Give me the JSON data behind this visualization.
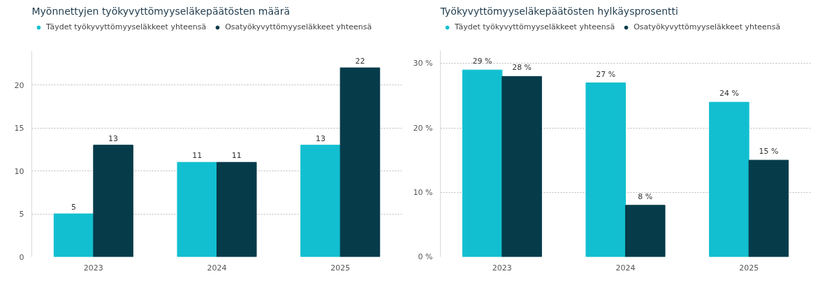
{
  "chart_data": [
    {
      "type": "bar",
      "title": "Myönnettyjen työkyvyttömyyseläkepäätösten määrä",
      "categories": [
        "2023",
        "2024",
        "2025"
      ],
      "series": [
        {
          "name": "Täydet työkyvyttömyyseläkkeet yhteensä",
          "color": "#12bfd0",
          "values": [
            5,
            11,
            13
          ]
        },
        {
          "name": "Osatyökyvyttömyyseläkkeet yhteensä",
          "color": "#063b4a",
          "values": [
            13,
            11,
            22
          ]
        }
      ],
      "ylim": [
        0,
        24
      ],
      "yticks": [
        0,
        5,
        10,
        15,
        20
      ],
      "grid": "y",
      "legend": "top left",
      "data_labels": true
    },
    {
      "type": "bar",
      "title": "Työkyvyttömyyseläkepäätösten hylkäysprosentti",
      "categories": [
        "2023",
        "2024",
        "2025"
      ],
      "series": [
        {
          "name": "Täydet työkyvyttömyyseläkkeet yhteensä",
          "color": "#12bfd0",
          "values": [
            29,
            27,
            24
          ],
          "value_labels": [
            "29 %",
            "27 %",
            "24 %"
          ]
        },
        {
          "name": "Osatyökyvyttömyyseläkkeet yhteensä",
          "color": "#063b4a",
          "values": [
            28,
            8,
            15
          ],
          "value_labels": [
            "28 %",
            "8 %",
            "15 %"
          ]
        }
      ],
      "ylim": [
        0,
        32
      ],
      "yticks": [
        {
          "value": 0,
          "label": "0 %"
        },
        {
          "value": 10,
          "label": "10 %"
        },
        {
          "value": 20,
          "label": "20 %"
        },
        {
          "value": 30,
          "label": "30 %"
        }
      ],
      "grid": "y",
      "legend": "top left"
    }
  ]
}
